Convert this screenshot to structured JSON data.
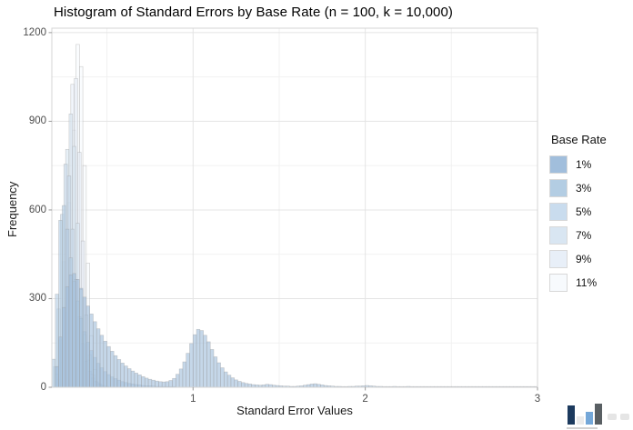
{
  "chart_data": {
    "type": "histogram",
    "title": "Histogram of Standard Errors by Base Rate (n = 100, k = 10,000)",
    "xlabel": "Standard Error Values",
    "ylabel": "Frequency",
    "legend_title": "Base Rate",
    "legend_position": "right",
    "grid": true,
    "xlim": [
      0.18,
      3.0
    ],
    "ylim": [
      0,
      1215
    ],
    "x_ticks": [
      1,
      2,
      3
    ],
    "y_ticks": [
      0,
      300,
      600,
      900,
      1200
    ],
    "x_minor_ticks": [
      0.5,
      1.5,
      2.5
    ],
    "y_minor_ticks": [
      150,
      450,
      750,
      1050
    ],
    "bin_width": 0.02,
    "style": {
      "bar_fill_opacity": 0.62,
      "bar_stroke": "#9c9c9c",
      "bar_stroke_opacity": 0.5,
      "grid_major": "#e4e4e4",
      "grid_minor": "#f1f1f1",
      "panel_border": "#d4d4d4",
      "tick_mark_color": "#9a9a9a",
      "tick_label_color": "#4d4d4d"
    },
    "series": [
      {
        "name": "1%",
        "color": "#a1bedc",
        "start": 0.2,
        "heights": [
          70,
          170,
          270,
          340,
          380,
          385,
          365,
          335,
          305,
          275,
          248,
          222,
          198,
          176,
          156,
          138,
          122,
          107,
          94,
          82,
          72,
          63,
          55,
          48,
          42,
          36,
          31,
          27,
          24,
          21,
          19,
          18,
          19,
          23,
          30,
          44,
          62,
          86,
          115,
          148,
          178,
          196,
          192,
          176,
          154,
          128,
          103,
          83,
          66,
          52,
          41,
          32,
          25,
          20,
          16,
          13,
          11,
          9,
          8,
          7,
          8,
          10,
          9,
          7,
          6,
          5,
          4,
          4,
          3,
          3,
          4,
          5,
          7,
          9,
          11,
          12,
          10,
          8,
          6,
          5,
          4,
          3,
          3,
          2,
          2,
          3,
          3,
          4,
          4,
          5,
          6,
          5,
          4,
          3,
          3,
          2,
          2,
          2,
          3,
          2,
          2,
          2,
          3,
          2,
          2,
          2,
          1,
          2,
          1,
          2,
          2,
          1,
          1,
          2,
          1,
          1,
          2,
          1,
          1,
          1,
          2,
          1,
          1,
          1,
          1,
          2,
          1,
          1,
          1,
          1,
          1,
          1,
          1,
          1,
          1,
          1,
          1,
          1,
          1,
          1
        ]
      },
      {
        "name": "3%",
        "color": "#b3cde3",
        "start": 0.18,
        "heights": [
          95,
          315,
          565,
          615,
          535,
          438,
          358,
          292,
          233,
          188,
          152,
          124,
          101,
          81,
          66,
          53,
          43,
          35,
          29,
          24,
          19,
          16,
          13,
          11,
          9,
          8,
          6,
          5,
          5,
          4,
          3,
          3,
          2,
          2,
          2,
          2
        ]
      },
      {
        "name": "5%",
        "color": "#c9dcee",
        "start": 0.19,
        "heights": [
          70,
          265,
          585,
          755,
          715,
          535,
          365,
          238,
          148,
          88,
          54,
          31,
          19,
          11,
          6,
          3
        ]
      },
      {
        "name": "7%",
        "color": "#d9e6f2",
        "start": 0.2,
        "heights": [
          45,
          160,
          425,
          805,
          925,
          815,
          555,
          330,
          178,
          92,
          44,
          21,
          10,
          4
        ]
      },
      {
        "name": "9%",
        "color": "#e8eff8",
        "start": 0.21,
        "heights": [
          25,
          85,
          255,
          625,
          1025,
          1045,
          795,
          495,
          245,
          110,
          42,
          16,
          6
        ]
      },
      {
        "name": "11%",
        "color": "#f7fafd",
        "start": 0.24,
        "heights": [
          40,
          150,
          430,
          870,
          1160,
          1085,
          750,
          420,
          175,
          60,
          15
        ]
      }
    ]
  },
  "watermark": {
    "bars": [
      {
        "color": "#1c3a5e",
        "height": 21
      },
      {
        "color": "#ebebeb",
        "height": 9
      },
      {
        "color": "#74a7d8",
        "height": 14
      },
      {
        "color": "#595f63",
        "height": 23
      }
    ],
    "faded_marks_color": "#dedede",
    "caption_bar_color": "#d2d2d2"
  }
}
